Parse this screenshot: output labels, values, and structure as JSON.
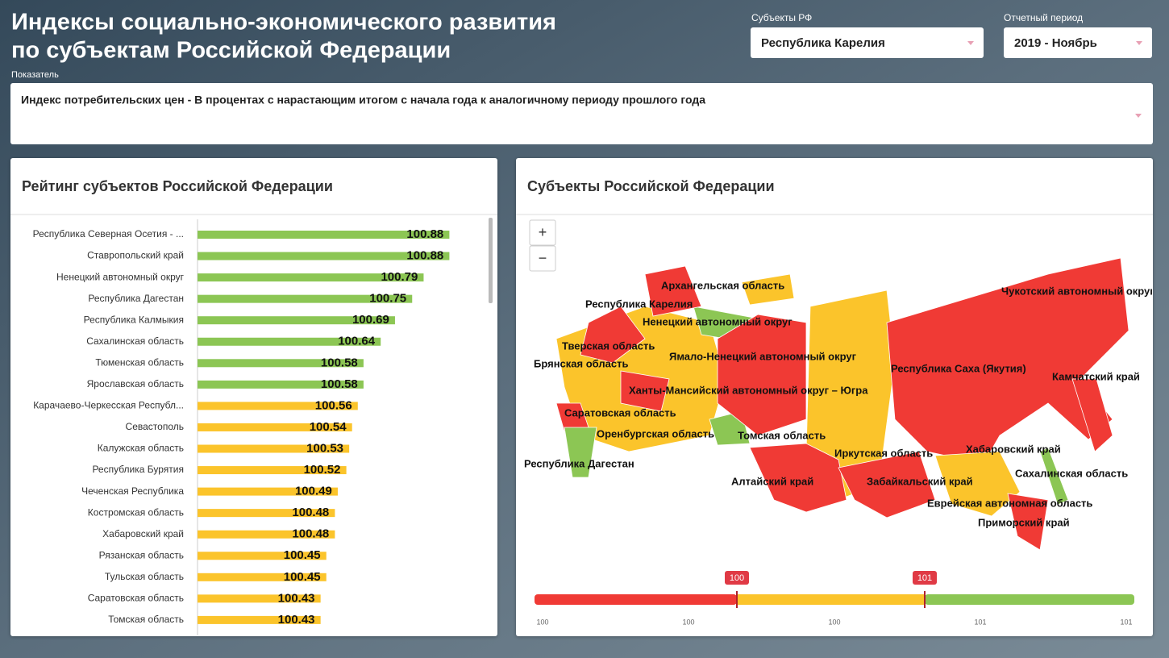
{
  "header": {
    "title": [
      "Индексы социально-экономического развития",
      "по субъектам Российской Федерации"
    ]
  },
  "filters": [
    {
      "label": "Субъекты РФ",
      "value": "Республика Карелия"
    },
    {
      "label": "Отчетный период",
      "value": "2019 - Ноябрь"
    }
  ],
  "indicator": {
    "label": "Показатель",
    "value": "Индекс потребительских цен - В процентах с нарастающим итогом с начала года к аналогичному периоду прошлого года"
  },
  "chart_data": {
    "type": "bar",
    "orientation": "horizontal",
    "title": "Рейтинг субъектов Российской Федерации",
    "categories": [
      "Республика Северная Осетия - ...",
      "Ставропольский край",
      "Ненецкий автономный округ",
      "Республика Дагестан",
      "Республика Калмыкия",
      "Сахалинская область",
      "Тюменская область",
      "Ярославская область",
      "Карачаево-Черкесская Республ...",
      "Севастополь",
      "Калужская область",
      "Республика Бурятия",
      "Чеченская Республика",
      "Костромская область",
      "Хабаровский край",
      "Рязанская область",
      "Тульская область",
      "Саратовская область",
      "Томская область"
    ],
    "values": [
      100.88,
      100.88,
      100.79,
      100.75,
      100.69,
      100.64,
      100.58,
      100.58,
      100.56,
      100.54,
      100.53,
      100.52,
      100.49,
      100.48,
      100.48,
      100.45,
      100.45,
      100.43,
      100.43
    ],
    "colors": [
      "#8cc654",
      "#8cc654",
      "#8cc654",
      "#8cc654",
      "#8cc654",
      "#8cc654",
      "#8cc654",
      "#8cc654",
      "#fbc42b",
      "#fbc42b",
      "#fbc42b",
      "#fbc42b",
      "#fbc42b",
      "#fbc42b",
      "#fbc42b",
      "#fbc42b",
      "#fbc42b",
      "#fbc42b",
      "#fbc42b"
    ],
    "xlim": [
      100,
      101
    ]
  },
  "map": {
    "title": "Субъекты Российской Федерации",
    "zoom": [
      "+",
      "−"
    ],
    "labels": [
      "Архангельская область",
      "Республика Карелия",
      "Ненецкий автономный округ",
      "Чукотский автономный округ",
      "Тверская область",
      "Брянская область",
      "Ямало-Ненецкий автономный округ",
      "Республика Саха (Якутия)",
      "Камчатский край",
      "Ханты-Мансийский автономный округ – Югра",
      "Саратовская область",
      "Оренбургская область",
      "Томская область",
      "Республика Дагестан",
      "Иркутская область",
      "Хабаровский край",
      "Сахалинская область",
      "Алтайский край",
      "Забайкальский край",
      "Еврейская автономная область",
      "Приморский край"
    ],
    "legend": {
      "markers": [
        "100",
        "101"
      ],
      "ticks": [
        "100",
        "100",
        "100",
        "101",
        "101"
      ],
      "colors": [
        "#f03a35",
        "#fbc42b",
        "#8cc654"
      ]
    }
  }
}
